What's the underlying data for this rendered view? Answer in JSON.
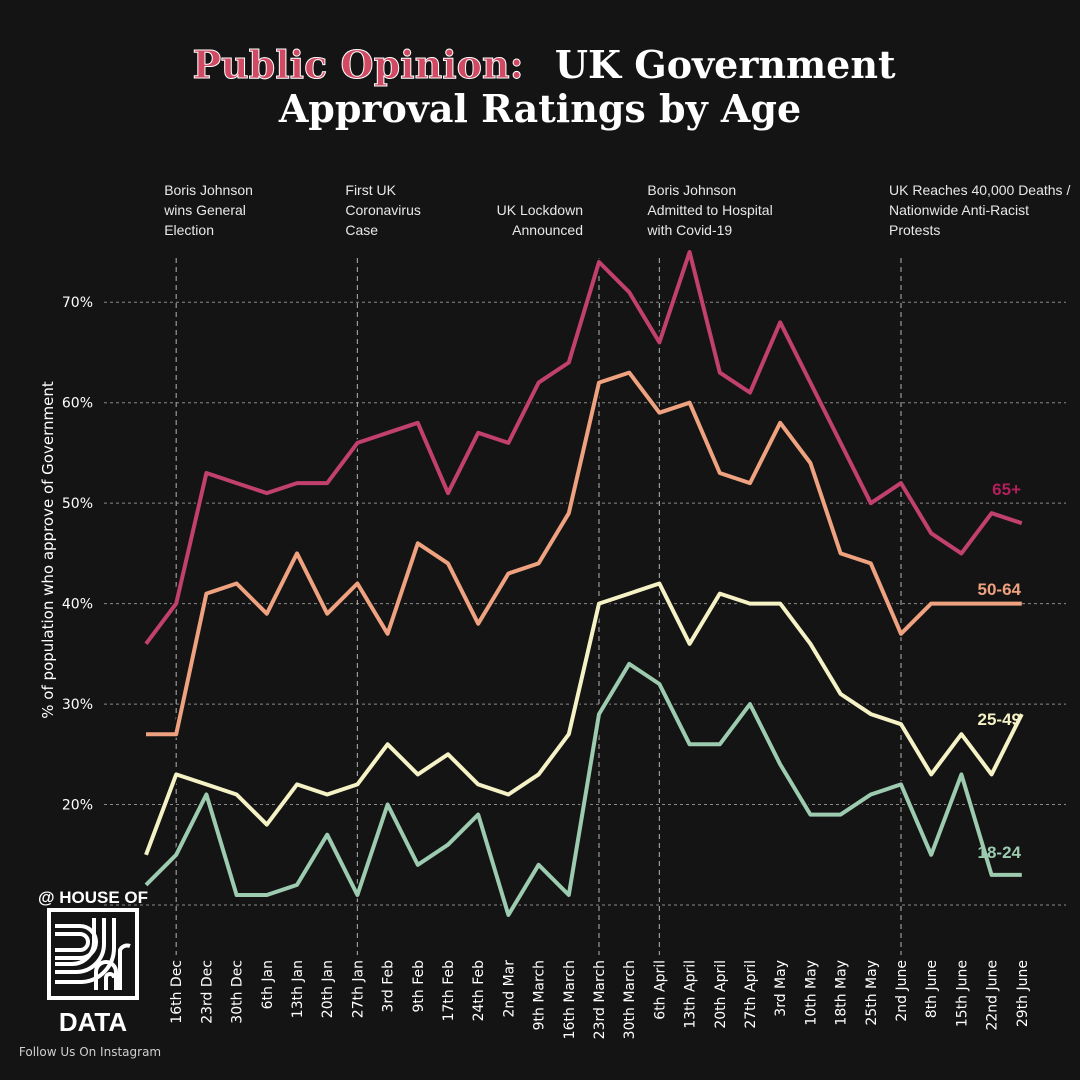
{
  "header": {
    "title_part1": "Public Opinion:",
    "title_part2": "UK Government",
    "title_line2": "Approval Ratings by Age"
  },
  "colors": {
    "background": "#141414",
    "accent": "#cf4a62",
    "series_65": "#c2406e",
    "series_50": "#efa27f",
    "series_25": "#f5f2c6",
    "series_18": "#9ccbb0",
    "label_65": "#b0205a"
  },
  "events": [
    {
      "index": 1,
      "lines": [
        "Boris Johnson",
        "wins General",
        "Election"
      ],
      "align": "left"
    },
    {
      "index": 7,
      "lines": [
        "First UK",
        "Coronavirus",
        "Case"
      ],
      "align": "left"
    },
    {
      "index": 15,
      "lines": [
        "UK Lockdown",
        "Announced"
      ],
      "align": "right"
    },
    {
      "index": 17,
      "lines": [
        "Boris Johnson",
        "Admitted to Hospital",
        "with Covid-19"
      ],
      "align": "left"
    },
    {
      "index": 25,
      "lines": [
        "UK Reaches 40,000 Deaths /",
        "Nationwide Anti-Racist",
        "Protests"
      ],
      "align": "left"
    }
  ],
  "chart_data": {
    "type": "line",
    "title": "Public Opinion: UK Government Approval Ratings by Age",
    "xlabel": "",
    "ylabel": "% of population who approve of Government",
    "ylim": [
      10,
      75
    ],
    "yticks": [
      20,
      30,
      40,
      50,
      60,
      70
    ],
    "ytick_labels": [
      "20%",
      "30%",
      "40%",
      "50%",
      "60%",
      "70%"
    ],
    "grid": true,
    "x": [
      "",
      "16th Dec",
      "23rd Dec",
      "30th Dec",
      "6th Jan",
      "13th Jan",
      "20th Jan",
      "27th Jan",
      "3rd Feb",
      "9th Feb",
      "17th Feb",
      "24th Feb",
      "2nd Mar",
      "9th March",
      "16th March",
      "23rd March",
      "30th March",
      "6th April",
      "13th April",
      "20th April",
      "27th April",
      "3rd May",
      "10th May",
      "18th May",
      "25th May",
      "2nd June",
      "8th June",
      "15th June",
      "22nd June",
      "29th June"
    ],
    "series": [
      {
        "name": "65+",
        "color": "#c2406e",
        "values": [
          36,
          40,
          53,
          52,
          51,
          52,
          52,
          56,
          57,
          58,
          51,
          57,
          56,
          62,
          64,
          74,
          71,
          66,
          75,
          63,
          61,
          68,
          62,
          56,
          50,
          52,
          47,
          45,
          49,
          48
        ]
      },
      {
        "name": "50-64",
        "color": "#efa27f",
        "values": [
          27,
          27,
          41,
          42,
          39,
          45,
          39,
          42,
          37,
          46,
          44,
          38,
          43,
          44,
          49,
          62,
          63,
          59,
          60,
          53,
          52,
          58,
          54,
          45,
          44,
          37,
          40,
          40,
          40,
          40
        ]
      },
      {
        "name": "25-49",
        "color": "#f5f2c6",
        "values": [
          15,
          23,
          22,
          21,
          18,
          22,
          21,
          22,
          26,
          23,
          25,
          22,
          21,
          23,
          27,
          40,
          41,
          42,
          36,
          41,
          40,
          40,
          36,
          31,
          29,
          28,
          23,
          27,
          23,
          29
        ]
      },
      {
        "name": "18-24",
        "color": "#9ccbb0",
        "values": [
          12,
          15,
          21,
          11,
          11,
          12,
          17,
          11,
          20,
          14,
          16,
          19,
          9,
          14,
          11,
          29,
          34,
          32,
          26,
          26,
          30,
          24,
          19,
          19,
          21,
          22,
          15,
          23,
          13,
          13
        ]
      }
    ]
  },
  "branding": {
    "top": "@ HOUSE OF",
    "bottom": "DATA",
    "footer": "Follow Us On Instagram"
  }
}
